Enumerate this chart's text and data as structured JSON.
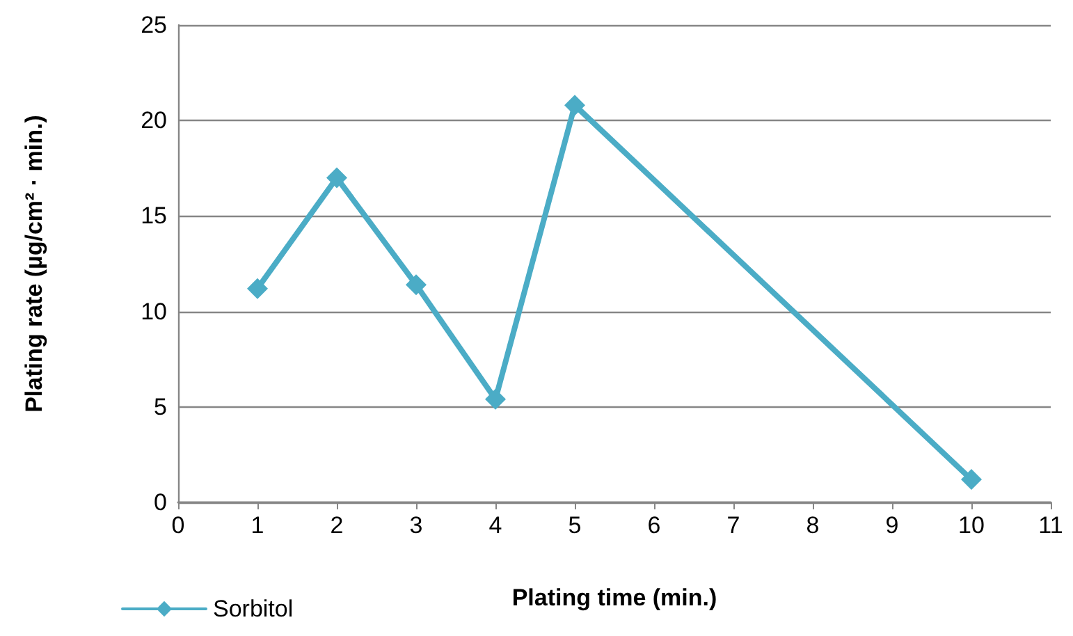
{
  "chart_data": {
    "type": "line",
    "xlabel": "Plating time (min.)",
    "ylabel": "Plating rate (µg/cm² · min.)",
    "x": [
      1,
      2,
      3,
      4,
      5,
      10
    ],
    "series": [
      {
        "name": "Sorbitol",
        "color": "#4bacc6",
        "values": [
          11.2,
          17.0,
          11.4,
          5.4,
          20.8,
          1.2
        ]
      }
    ],
    "xlim": [
      0,
      11
    ],
    "xticks": [
      0,
      1,
      2,
      3,
      4,
      5,
      6,
      7,
      8,
      9,
      10,
      11
    ],
    "ylim": [
      0,
      25
    ],
    "yticks": [
      0,
      5,
      10,
      15,
      20,
      25
    ],
    "grid": "y",
    "legend": "bottom left",
    "marker": "diamond",
    "line_style": "solid"
  }
}
